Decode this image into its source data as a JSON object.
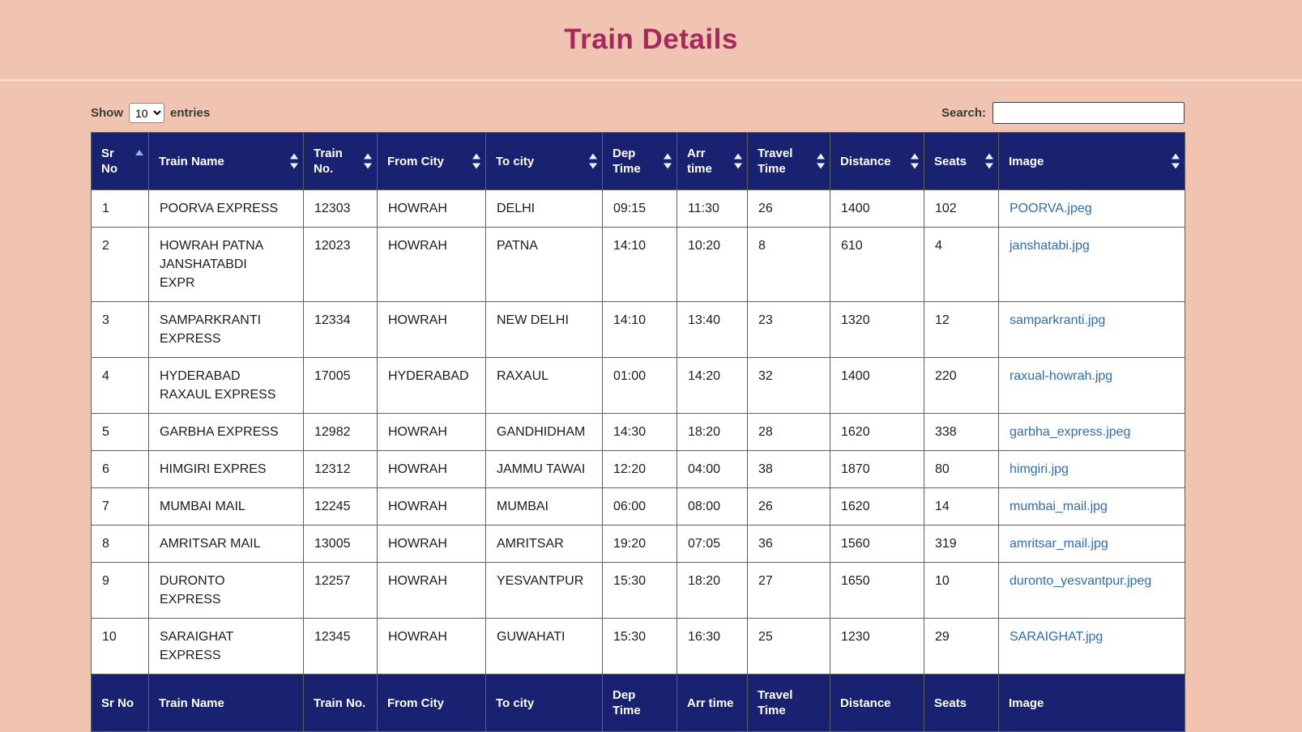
{
  "colors": {
    "page_bg": "#f1c4b1",
    "title": "#a5295c",
    "header_bg": "#192270",
    "header_text": "#ffffff",
    "link": "#2e6cb5",
    "sort_active": "#8fb3ec"
  },
  "page": {
    "title": "Train Details"
  },
  "toolbar": {
    "show_label": "Show",
    "entries_label": "entries",
    "page_length": {
      "value": "10",
      "options": [
        "10"
      ]
    },
    "search": {
      "label": "Search:",
      "value": ""
    }
  },
  "table": {
    "columns": [
      {
        "key": "sr-no",
        "label": "Sr No",
        "sort": "asc"
      },
      {
        "key": "train-name",
        "label": "Train Name",
        "sort": "both"
      },
      {
        "key": "train-no",
        "label": "Train No.",
        "sort": "both"
      },
      {
        "key": "from-city",
        "label": "From City",
        "sort": "both"
      },
      {
        "key": "to-city",
        "label": "To city",
        "sort": "both"
      },
      {
        "key": "dep-time",
        "label": "Dep Time",
        "sort": "both"
      },
      {
        "key": "arr-time",
        "label": "Arr time",
        "sort": "both"
      },
      {
        "key": "travel-time",
        "label": "Travel Time",
        "sort": "both"
      },
      {
        "key": "distance",
        "label": "Distance",
        "sort": "both"
      },
      {
        "key": "seats",
        "label": "Seats",
        "sort": "both"
      },
      {
        "key": "image",
        "label": "Image",
        "sort": "both"
      }
    ],
    "rows": [
      [
        "1",
        "POORVA EXPRESS",
        "12303",
        "HOWRAH",
        "DELHI",
        "09:15",
        "11:30",
        "26",
        "1400",
        "102",
        "POORVA.jpeg"
      ],
      [
        "2",
        "HOWRAH PATNA JANSHATABDI EXPR",
        "12023",
        "HOWRAH",
        "PATNA",
        "14:10",
        "10:20",
        "8",
        "610",
        "4",
        "janshatabi.jpg"
      ],
      [
        "3",
        "SAMPARKRANTI EXPRESS",
        "12334",
        "HOWRAH",
        "NEW DELHI",
        "14:10",
        "13:40",
        "23",
        "1320",
        "12",
        "samparkranti.jpg"
      ],
      [
        "4",
        "HYDERABAD RAXAUL EXPRESS",
        "17005",
        "HYDERABAD",
        "RAXAUL",
        "01:00",
        "14:20",
        "32",
        "1400",
        "220",
        "raxual-howrah.jpg"
      ],
      [
        "5",
        "GARBHA EXPRESS",
        "12982",
        "HOWRAH",
        "GANDHIDHAM",
        "14:30",
        "18:20",
        "28",
        "1620",
        "338",
        "garbha_express.jpeg"
      ],
      [
        "6",
        "HIMGIRI EXPRES",
        "12312",
        "HOWRAH",
        "JAMMU TAWAI",
        "12:20",
        "04:00",
        "38",
        "1870",
        "80",
        "himgiri.jpg"
      ],
      [
        "7",
        "MUMBAI MAIL",
        "12245",
        "HOWRAH",
        "MUMBAI",
        "06:00",
        "08:00",
        "26",
        "1620",
        "14",
        "mumbai_mail.jpg"
      ],
      [
        "8",
        "AMRITSAR MAIL",
        "13005",
        "HOWRAH",
        "AMRITSAR",
        "19:20",
        "07:05",
        "36",
        "1560",
        "319",
        "amritsar_mail.jpg"
      ],
      [
        "9",
        "DURONTO EXPRESS",
        "12257",
        "HOWRAH",
        "YESVANTPUR",
        "15:30",
        "18:20",
        "27",
        "1650",
        "10",
        "duronto_yesvantpur.jpeg"
      ],
      [
        "10",
        "SARAIGHAT EXPRESS",
        "12345",
        "HOWRAH",
        "GUWAHATI",
        "15:30",
        "16:30",
        "25",
        "1230",
        "29",
        "SARAIGHAT.jpg"
      ]
    ]
  }
}
